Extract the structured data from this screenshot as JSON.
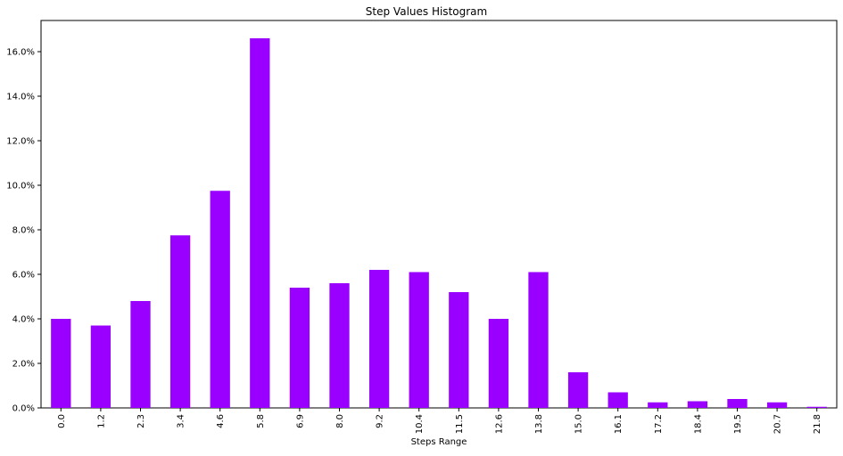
{
  "chart_data": {
    "type": "bar",
    "title": "Step Values Histogram",
    "xlabel": "Steps Range",
    "ylabel": "",
    "categories": [
      "0.0",
      "1.2",
      "2.3",
      "3.4",
      "4.6",
      "5.8",
      "6.9",
      "8.0",
      "9.2",
      "10.4",
      "11.5",
      "12.6",
      "13.8",
      "15.0",
      "16.1",
      "17.2",
      "18.4",
      "19.5",
      "20.7",
      "21.8"
    ],
    "values": [
      4.0,
      3.7,
      4.8,
      7.75,
      9.75,
      16.6,
      5.4,
      5.6,
      6.2,
      6.1,
      5.2,
      4.0,
      6.1,
      1.6,
      0.7,
      0.25,
      0.3,
      0.4,
      0.25,
      0.05
    ],
    "ylim": [
      0,
      17.4
    ],
    "yticks": [
      0,
      2,
      4,
      6,
      8,
      10,
      12,
      14,
      16
    ],
    "ytick_labels": [
      "0.0%",
      "2.0%",
      "4.0%",
      "6.0%",
      "8.0%",
      "10.0%",
      "12.0%",
      "14.0%",
      "16.0%"
    ],
    "bar_color": "#9900ff",
    "grid": false,
    "legend": "none"
  }
}
